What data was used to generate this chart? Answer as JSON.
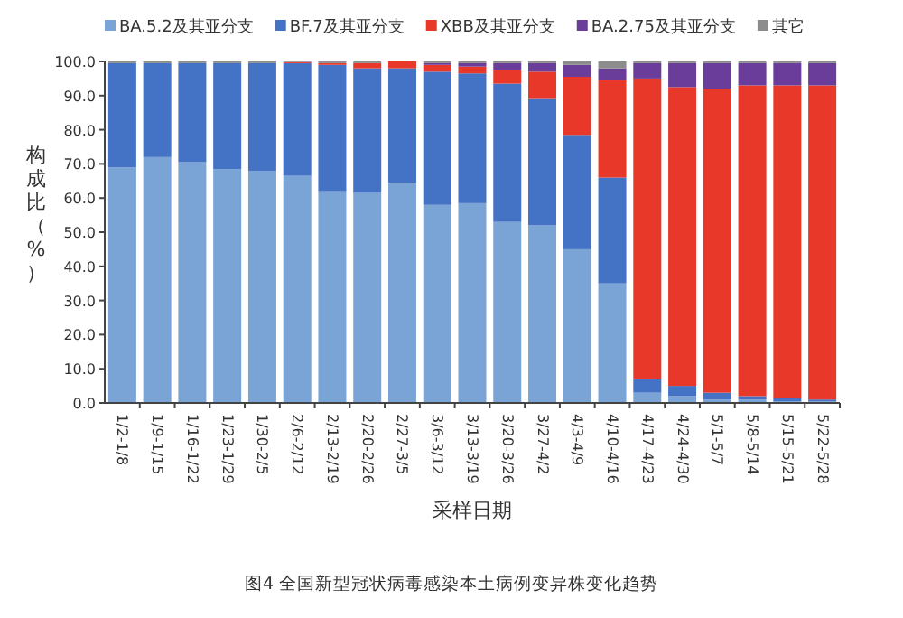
{
  "chart_data": {
    "type": "bar",
    "stacked": true,
    "xlabel": "采样日期",
    "ylabel": "构成比（%）",
    "legend": "top",
    "grid": false,
    "categories": [
      "1/2-1/8",
      "1/9-1/15",
      "1/16-1/22",
      "1/23-1/29",
      "1/30-2/5",
      "2/6-2/12",
      "2/13-2/19",
      "2/20-2/26",
      "2/27-3/5",
      "3/6-3/12",
      "3/13-3/19",
      "3/20-3/26",
      "3/27-4/2",
      "4/3-4/9",
      "4/10-4/16",
      "4/17-4/23",
      "4/24-4/30",
      "5/1-5/7",
      "5/8-5/14",
      "5/15-5/21",
      "5/22-5/28"
    ],
    "ylim": [
      0,
      100
    ],
    "yticks": [
      {
        "value": 0,
        "label": "0.0"
      },
      {
        "value": 10,
        "label": "10.0"
      },
      {
        "value": 20,
        "label": "20.0"
      },
      {
        "value": 30,
        "label": "30.0"
      },
      {
        "value": 40,
        "label": "40.0"
      },
      {
        "value": 50,
        "label": "50.0"
      },
      {
        "value": 60,
        "label": "60.0"
      },
      {
        "value": 70,
        "label": "70.0"
      },
      {
        "value": 80,
        "label": "80.0"
      },
      {
        "value": 90,
        "label": "90.0"
      },
      {
        "value": 100,
        "label": "100.0"
      }
    ],
    "series": [
      {
        "name": "BA.5.2及其亚分支",
        "color": "#7ba4d6",
        "values": [
          69,
          72,
          70.5,
          68.5,
          68,
          66.5,
          62,
          61.5,
          64.5,
          58,
          58.5,
          53,
          52,
          45,
          35,
          3,
          2,
          1,
          1,
          0.5,
          0.5
        ]
      },
      {
        "name": "BF.7及其亚分支",
        "color": "#4472c4",
        "values": [
          30.5,
          27.5,
          29,
          31,
          31.5,
          33,
          37,
          36.5,
          33.5,
          39,
          38,
          40.5,
          37,
          33.5,
          31,
          4,
          3,
          2,
          1,
          1,
          0.5
        ]
      },
      {
        "name": "XBB及其亚分支",
        "color": "#e8382a",
        "values": [
          0,
          0,
          0,
          0,
          0,
          0.3,
          0.5,
          1.5,
          2,
          2,
          2,
          4,
          8,
          17,
          28.5,
          88,
          87.5,
          89,
          91,
          91.5,
          92
        ]
      },
      {
        "name": "BA.2.75及其亚分支",
        "color": "#6a3d9a",
        "values": [
          0,
          0,
          0,
          0,
          0,
          0,
          0,
          0,
          0,
          0.5,
          1,
          2,
          2.5,
          3.5,
          3.5,
          4.5,
          7,
          7.5,
          6.5,
          6.5,
          6.5
        ]
      },
      {
        "name": "其它",
        "color": "#8c8c8c",
        "values": [
          0.5,
          0.5,
          0.5,
          0.5,
          0.5,
          0.2,
          0.5,
          0.5,
          0,
          0.5,
          0.5,
          0.5,
          0.5,
          1,
          2,
          0.5,
          0.5,
          0.5,
          0.5,
          0.5,
          0.5
        ]
      }
    ],
    "annotations": [
      "图4 全国新型冠状病毒感染本土病例变异株变化趋势"
    ]
  }
}
